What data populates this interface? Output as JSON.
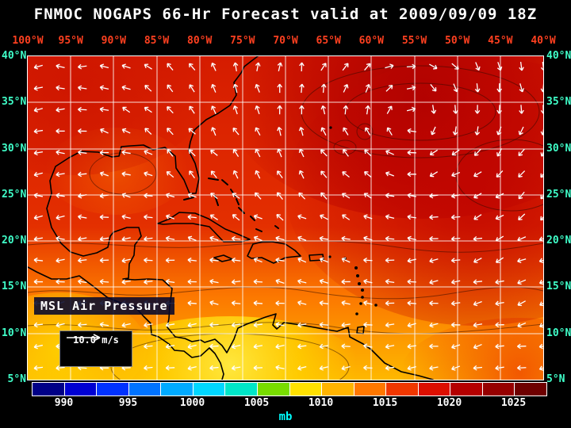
{
  "title": "FNMOC NOGAPS 66-Hr Forecast valid at 2009/09/09 18Z",
  "map": {
    "lon_labels": [
      "100°W",
      "95°W",
      "90°W",
      "85°W",
      "80°W",
      "75°W",
      "70°W",
      "65°W",
      "60°W",
      "55°W",
      "50°W",
      "45°W",
      "40°W"
    ],
    "lat_labels": [
      "40°N",
      "35°N",
      "30°N",
      "25°N",
      "20°N",
      "15°N",
      "10°N",
      "5°N"
    ],
    "field_label": "MSL Air Pressure",
    "wind_scale_label": "10.0 m/s"
  },
  "colorbar": {
    "unit": "mb",
    "tick_labels": [
      "990",
      "995",
      "1000",
      "1005",
      "1010",
      "1015",
      "1020",
      "1025"
    ],
    "segment_colors": [
      "#000087",
      "#0000d2",
      "#0032ff",
      "#0073ff",
      "#00aaff",
      "#00d7ff",
      "#00e6c8",
      "#78dc00",
      "#ffe100",
      "#ffb400",
      "#ff7800",
      "#f03700",
      "#dc0f00",
      "#b40000",
      "#960000",
      "#6e0000"
    ]
  },
  "colors": {
    "background": "#000000",
    "title": "#ffffff",
    "lon_labels": "#ff4020",
    "lat_labels": "#40ffc9",
    "grid": "#ffffff",
    "coastline": "#000000",
    "wind_arrows": "#ffffff",
    "tick_labels": "#ffffff",
    "unit_label": "#00ffff"
  },
  "chart_data": {
    "type": "heatmap",
    "title": "FNMOC NOGAPS 66-Hr Forecast valid at 2009/09/09 18Z",
    "model": "FNMOC NOGAPS",
    "forecast_hour": 66,
    "valid_time": "2009/09/09 18Z",
    "variable": "MSL Air Pressure",
    "unit": "mb",
    "x_axis": {
      "label": "longitude",
      "ticks": [
        "100°W",
        "95°W",
        "90°W",
        "85°W",
        "80°W",
        "75°W",
        "70°W",
        "65°W",
        "60°W",
        "55°W",
        "50°W",
        "45°W",
        "40°W"
      ]
    },
    "y_axis": {
      "label": "latitude",
      "ticks": [
        "40°N",
        "35°N",
        "30°N",
        "25°N",
        "20°N",
        "15°N",
        "10°N",
        "5°N"
      ]
    },
    "colorbar_ticks_mb": [
      990,
      995,
      1000,
      1005,
      1010,
      1015,
      1020,
      1025
    ],
    "colorbar_interval_mb": 2.5,
    "wind_reference_vector_mps": 10.0,
    "field_estimate": {
      "dominant_pressure_mb": 1016,
      "subtropical_high": {
        "approx_lon": "55°W",
        "approx_lat": "33°N",
        "approx_peak_mb": 1022
      },
      "tropical_low_band": {
        "lat_range": "5°N-12°N",
        "approx_min_mb": 1008
      },
      "description": "Pressure highest over the NW Atlantic subtropical high (dark red), decreasing southward to a yellow low band near Panama/ITCZ; easterly trade-wind arrows in the tropics, clockwise circulation around the high."
    }
  }
}
